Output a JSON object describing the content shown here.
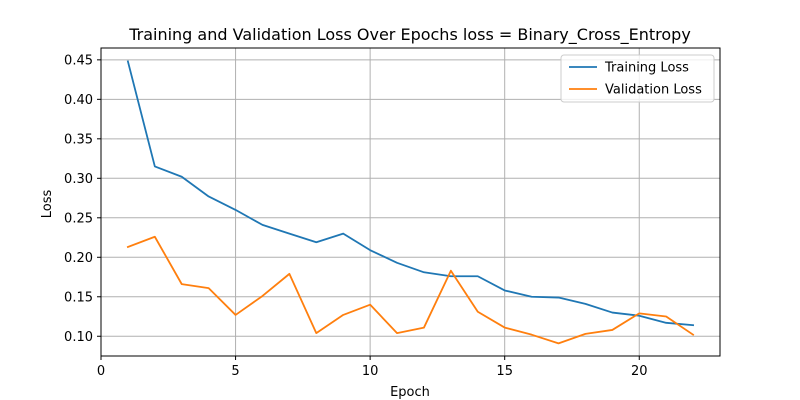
{
  "chart_data": {
    "type": "line",
    "title": "Training and Validation Loss Over Epochs loss = Binary_Cross_Entropy",
    "xlabel": "Epoch",
    "ylabel": "Loss",
    "xlim": [
      0,
      23
    ],
    "ylim": [
      0.075,
      0.465
    ],
    "xticks": [
      0,
      5,
      10,
      15,
      20
    ],
    "yticks": [
      0.1,
      0.15,
      0.2,
      0.25,
      0.3,
      0.35,
      0.4,
      0.45
    ],
    "grid": true,
    "legend_position": "top-right",
    "x": [
      1,
      2,
      3,
      4,
      5,
      6,
      7,
      8,
      9,
      10,
      11,
      12,
      13,
      14,
      15,
      16,
      17,
      18,
      19,
      20,
      21,
      22
    ],
    "series": [
      {
        "name": "Training Loss",
        "color": "#1f77b4",
        "values": [
          0.448,
          0.315,
          0.302,
          0.277,
          0.26,
          0.241,
          0.23,
          0.219,
          0.23,
          0.209,
          0.193,
          0.181,
          0.176,
          0.176,
          0.158,
          0.15,
          0.149,
          0.141,
          0.13,
          0.126,
          0.117,
          0.114
        ]
      },
      {
        "name": "Validation Loss",
        "color": "#ff7f0e",
        "values": [
          0.213,
          0.226,
          0.166,
          0.161,
          0.127,
          0.151,
          0.179,
          0.104,
          0.127,
          0.14,
          0.104,
          0.111,
          0.183,
          0.131,
          0.111,
          0.102,
          0.091,
          0.103,
          0.108,
          0.129,
          0.125,
          0.102
        ]
      }
    ]
  }
}
